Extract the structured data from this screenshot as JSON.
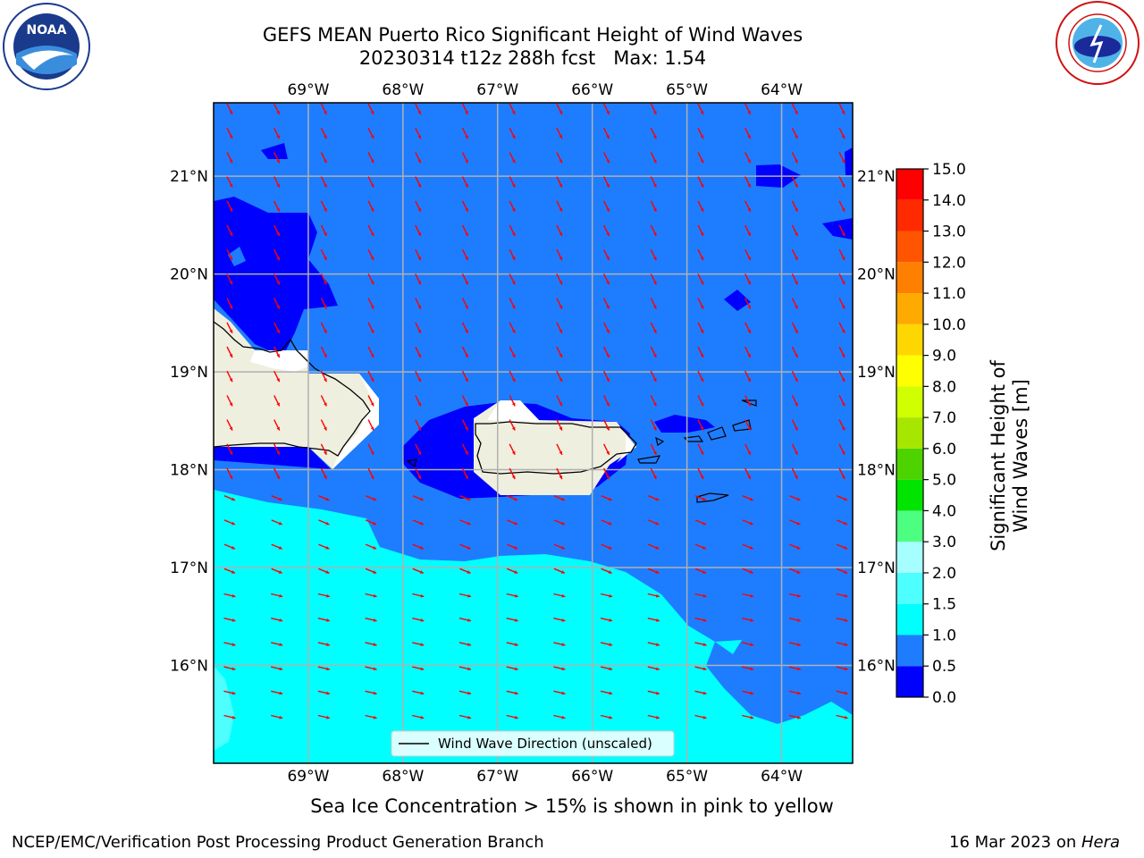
{
  "title": {
    "line1": "GEFS MEAN Puerto Rico Significant Height of Wind Waves",
    "line2": "20230314 t12z 288h fcst   Max: 1.54"
  },
  "map": {
    "lon_range": [
      -70.0,
      -63.25
    ],
    "lat_range": [
      15.0,
      21.75
    ],
    "lon_ticks": [
      {
        "value": -69,
        "label": "69°W"
      },
      {
        "value": -68,
        "label": "68°W"
      },
      {
        "value": -67,
        "label": "67°W"
      },
      {
        "value": -66,
        "label": "66°W"
      },
      {
        "value": -65,
        "label": "65°W"
      },
      {
        "value": -64,
        "label": "64°W"
      }
    ],
    "lat_ticks": [
      {
        "value": 21,
        "label": "21°N"
      },
      {
        "value": 20,
        "label": "20°N"
      },
      {
        "value": 19,
        "label": "19°N"
      },
      {
        "value": 18,
        "label": "18°N"
      },
      {
        "value": 17,
        "label": "17°N"
      },
      {
        "value": 16,
        "label": "16°N"
      }
    ],
    "grid": true,
    "legend": {
      "label": "Wind Wave Direction (unscaled)",
      "placement": "lower-center"
    },
    "land_color": "#efefdf",
    "arrow_color": "#ff0000"
  },
  "colorbar": {
    "title": "Significant Height of Wind Waves [m]",
    "levels": [
      "0.0",
      "0.5",
      "1.0",
      "1.5",
      "2.0",
      "3.0",
      "4.0",
      "5.0",
      "6.0",
      "7.0",
      "8.0",
      "9.0",
      "10.0",
      "11.0",
      "12.0",
      "13.0",
      "14.0",
      "15.0"
    ],
    "colors": [
      "#0000ff",
      "#1e7dff",
      "#00ffff",
      "#4dffff",
      "#a6ffff",
      "#4dff80",
      "#00e400",
      "#4dd400",
      "#a6e600",
      "#cfff00",
      "#ffff00",
      "#ffd700",
      "#ffaa00",
      "#ff8000",
      "#ff5500",
      "#ff2a00",
      "#ff0000"
    ]
  },
  "ice_note": "Sea Ice Concentration > 15% is shown in pink to yellow",
  "footer": {
    "left": "NCEP/EMC/Verification Post Processing Product Generation Branch",
    "right_date": "16 Mar 2023 on ",
    "right_host": "Hera"
  }
}
